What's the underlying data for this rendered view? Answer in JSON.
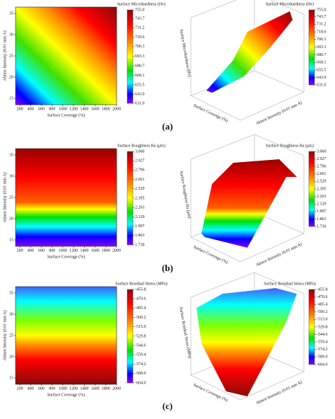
{
  "chart_data": [
    {
      "type": "contour",
      "panel_label": "(a)",
      "title": "Surface Microhardness (Hv)",
      "x_label": "Surface Coverage (%)",
      "y_label": "Almen Intensity (0.01 mm A)",
      "xlim": [
        120,
        2000
      ],
      "xticks": [
        200,
        400,
        600,
        800,
        1000,
        1200,
        1400,
        1600,
        1800,
        2000
      ],
      "ylim": [
        13.5,
        36.5
      ],
      "yticks": [
        15,
        20,
        25,
        30,
        35
      ],
      "colorbar_ticks": [
        {
          "value": 755,
          "label": "755.0"
        },
        743.7,
        731.2,
        718.6,
        706.3,
        693.3,
        680.7,
        668.1,
        655.5,
        {
          "value": 643,
          "label": "643.0"
        },
        {
          "value": 631,
          "label": "631.0"
        }
      ]
    },
    {
      "type": "contour",
      "panel_label": "(b)",
      "title": "Surface Roughness Ra (μm)",
      "x_label": "Surface Coverage (%)",
      "y_label": "Almen Intensity (0.01 mm A)",
      "xlim": [
        120,
        2000
      ],
      "xticks": [
        200,
        400,
        600,
        800,
        1000,
        1200,
        1400,
        1600,
        1800,
        2000
      ],
      "ylim": [
        13.5,
        36.5
      ],
      "yticks": [
        15,
        20,
        25,
        30,
        35
      ],
      "colorbar_ticks": [
        {
          "value": 3.06,
          "label": "3.060"
        },
        2.927,
        2.796,
        2.661,
        2.529,
        2.395,
        2.263,
        2.129,
        1.997,
        1.863,
        {
          "value": 1.73,
          "label": "1.730"
        }
      ]
    },
    {
      "type": "contour",
      "panel_label": "(c)",
      "title": "Surface Residual Stress (MPa)",
      "x_label": "Surface Coverage (%)",
      "y_label": "Almen Intensity (0.01 mm A)",
      "xlim": [
        120,
        2000
      ],
      "xticks": [
        200,
        400,
        600,
        800,
        1000,
        1200,
        1400,
        1600,
        1800,
        2000
      ],
      "ylim": [
        13.5,
        36.5
      ],
      "yticks": [
        15,
        20,
        25,
        30,
        35
      ],
      "colorbar_ticks": [
        -455.8,
        -470.6,
        -485.4,
        -500.2,
        {
          "value": -515,
          "label": "-515.0"
        },
        -529.8,
        -544.6,
        -559.4,
        -574.2,
        {
          "value": -589,
          "label": "-589.0"
        },
        {
          "value": -604,
          "label": "-604.0"
        }
      ]
    }
  ]
}
